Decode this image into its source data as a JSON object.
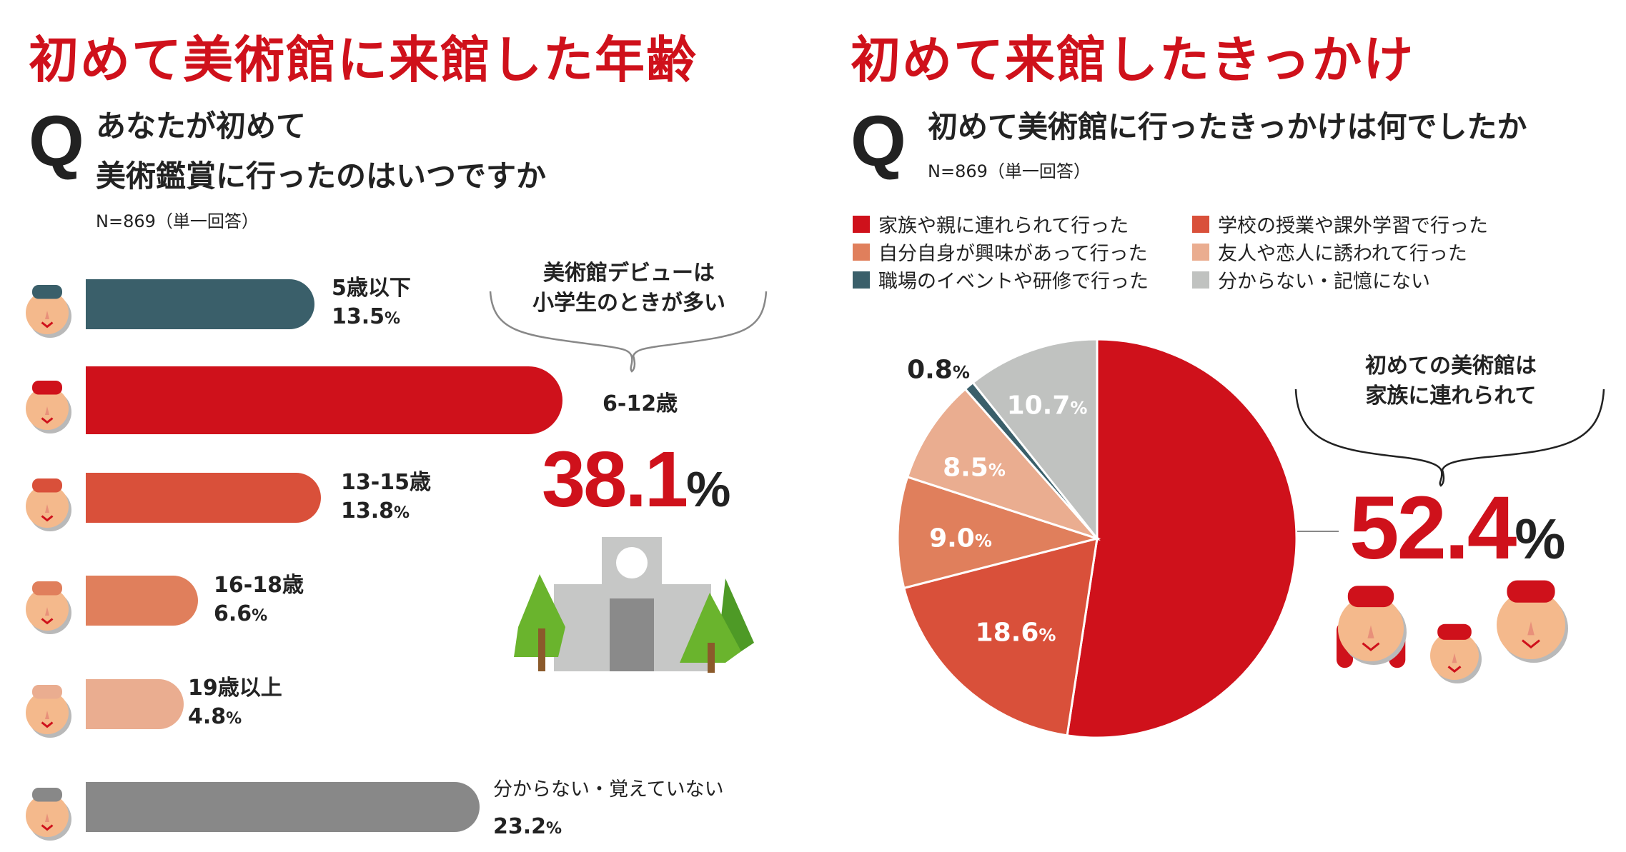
{
  "left": {
    "title": "初めて美術館に来館した年齢",
    "q_mark": "Q",
    "question_line1": "あなたが初めて",
    "question_line2": "美術鑑賞に行ったのはいつですか",
    "sample": "N=869（単一回答）",
    "callout_line1": "美術館デビューは",
    "callout_line2": "小学生のときが多い",
    "highlight_value": "38.1",
    "percent_sign": "%"
  },
  "right": {
    "title": "初めて来館したきっかけ",
    "q_mark": "Q",
    "question": "初めて美術館に行ったきっかけは何でしたか",
    "sample": "N=869（単一回答）",
    "callout_line1": "初めての美術館は",
    "callout_line2": "家族に連れられて",
    "highlight_value": "52.4",
    "percent_sign": "%"
  },
  "chart_data": [
    {
      "type": "bar",
      "title": "初めて美術館に来館した年齢",
      "orientation": "horizontal",
      "unit": "%",
      "categories": [
        "5歳以下",
        "6-12歳",
        "13-15歳",
        "16-18歳",
        "19歳以上",
        "分からない・覚えていない"
      ],
      "values": [
        13.5,
        38.1,
        13.8,
        6.6,
        4.8,
        23.2
      ],
      "value_labels": [
        "13.5",
        "38.1",
        "13.8",
        "6.6",
        "4.8",
        "23.2"
      ],
      "colors": [
        "#3a5f6a",
        "#cf111b",
        "#d9503a",
        "#e07f5c",
        "#eaad90",
        "#888888"
      ]
    },
    {
      "type": "pie",
      "title": "初めて来館したきっかけ",
      "unit": "%",
      "start": "top",
      "direction": "clockwise",
      "categories": [
        "家族や親に連れられて行った",
        "学校の授業や課外学習で行った",
        "自分自身が興味があって行った",
        "友人や恋人に誘われて行った",
        "職場のイベントや研修で行った",
        "分からない・記憶にない"
      ],
      "values": [
        52.4,
        18.6,
        9.0,
        8.5,
        0.8,
        10.7
      ],
      "value_labels": [
        "52.4",
        "18.6",
        "9.0",
        "8.5",
        "0.8",
        "10.7"
      ],
      "colors": [
        "#cf111b",
        "#d9503a",
        "#e07f5c",
        "#eaad90",
        "#3a5f6a",
        "#c0c2c0"
      ],
      "legend": "top"
    }
  ]
}
